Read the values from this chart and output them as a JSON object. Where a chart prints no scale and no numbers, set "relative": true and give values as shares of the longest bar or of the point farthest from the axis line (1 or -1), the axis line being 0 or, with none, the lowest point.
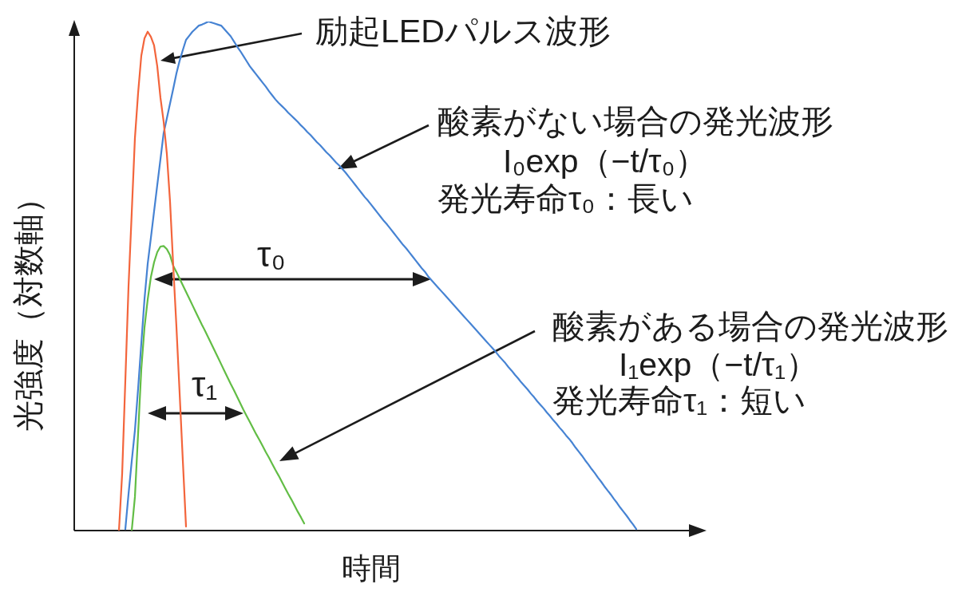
{
  "chart_data": {
    "type": "line",
    "relative": true,
    "tick_labels": false,
    "marker": "none",
    "xlabel": "時間",
    "ylabel": "光強度（対数軸）",
    "annotations": [
      "励起LEDパルス波形",
      "酸素がない場合の発光波形",
      "I₀exp（−t/τ₀）",
      "発光寿命τ₀：長い",
      "τ₀",
      "酸素がある場合の発光波形",
      "I₁exp（−t/τ₁）",
      "発光寿命τ₁：短い",
      "τ₁"
    ],
    "categories": [
      null,
      null,
      null,
      null,
      null,
      null,
      null,
      null,
      null,
      null,
      null,
      null,
      null,
      null,
      null,
      null,
      null,
      null,
      null,
      null,
      null,
      null,
      null,
      null,
      null,
      null,
      null,
      null,
      null,
      null,
      null,
      null,
      null,
      null,
      null,
      null,
      null,
      null,
      null,
      null,
      null,
      null,
      null,
      null,
      null,
      null,
      null,
      null,
      null,
      null,
      null,
      null,
      null,
      null,
      null,
      null,
      null,
      null,
      null,
      null,
      null,
      null,
      null,
      null,
      null,
      null,
      null,
      null,
      null,
      null,
      null,
      null,
      null,
      null,
      null,
      null,
      null,
      null,
      null,
      null,
      null,
      null,
      null,
      null,
      null,
      null,
      null,
      null,
      null,
      null,
      null,
      null,
      null,
      null,
      null,
      null,
      null,
      null,
      null,
      null,
      null,
      null,
      null,
      null,
      null,
      null,
      null,
      null,
      null,
      null,
      null,
      null,
      null,
      null,
      null,
      null,
      null,
      null,
      null,
      null,
      null,
      null,
      null,
      null,
      null,
      null,
      null,
      null,
      null,
      null,
      null,
      null,
      null,
      null,
      null,
      null,
      null,
      null,
      null,
      null,
      null,
      null,
      null,
      null,
      null,
      null,
      null,
      null,
      null,
      null,
      null,
      null,
      null,
      null,
      null,
      null,
      null,
      null,
      null,
      null,
      null,
      null,
      null,
      null,
      null,
      null,
      null,
      null,
      null,
      null,
      null,
      null,
      null,
      null,
      null,
      null,
      null,
      null,
      null,
      null,
      null,
      null,
      null,
      null,
      null,
      null,
      null,
      null,
      null,
      null,
      null,
      null,
      null,
      null
    ],
    "series": [
      {
        "color": "#f3653c",
        "values": [
          null,
          null,
          null,
          null,
          null,
          null,
          null,
          null,
          null,
          null,
          null,
          null,
          null,
          null,
          0.0,
          0.111,
          0.295,
          0.48,
          0.624,
          0.771,
          0.86,
          0.933,
          0.967,
          0.98,
          0.97,
          0.953,
          0.912,
          0.85,
          0.803,
          0.74,
          0.646,
          0.52,
          0.4,
          0.27,
          0.138,
          0.008,
          null,
          null,
          null,
          null,
          null,
          null,
          null,
          null,
          null,
          null,
          null,
          null,
          null,
          null,
          null,
          null,
          null,
          null,
          null,
          null,
          null,
          null,
          null,
          null,
          null,
          null,
          null,
          null,
          null,
          null,
          null,
          null,
          null,
          null,
          null,
          null,
          null,
          null,
          null,
          null,
          null,
          null,
          null,
          null,
          null,
          null,
          null,
          null,
          null,
          null,
          null,
          null,
          null,
          null,
          null,
          null,
          null,
          null,
          null,
          null,
          null,
          null,
          null,
          null,
          null,
          null,
          null,
          null,
          null,
          null,
          null,
          null,
          null,
          null,
          null,
          null,
          null,
          null,
          null,
          null,
          null,
          null,
          null,
          null,
          null,
          null,
          null,
          null,
          null,
          null,
          null,
          null,
          null,
          null,
          null,
          null,
          null,
          null,
          null,
          null,
          null,
          null,
          null,
          null,
          null,
          null,
          null,
          null,
          null,
          null,
          null,
          null,
          null,
          null,
          null,
          null,
          null,
          null,
          null,
          null,
          null,
          null,
          null,
          null,
          null,
          null,
          null,
          null,
          null,
          null,
          null,
          null,
          null,
          null,
          null,
          null,
          null,
          null,
          null,
          null,
          null,
          null,
          null,
          null,
          null,
          null,
          null,
          null,
          null,
          null,
          null,
          null,
          null,
          null,
          null,
          null,
          null,
          null
        ]
      },
      {
        "color": "#4683d3",
        "values": [
          null,
          null,
          null,
          null,
          null,
          null,
          null,
          null,
          null,
          null,
          null,
          null,
          null,
          null,
          null,
          null,
          0.003,
          0.072,
          0.136,
          0.197,
          0.279,
          0.368,
          0.455,
          0.524,
          0.575,
          0.627,
          0.679,
          0.73,
          0.781,
          0.81,
          0.839,
          0.868,
          0.898,
          0.923,
          0.944,
          0.964,
          0.972,
          0.98,
          0.986,
          0.992,
          0.994,
          0.997,
          1.0,
          0.998,
          0.996,
          0.994,
          0.992,
          0.985,
          0.978,
          0.971,
          0.961,
          0.951,
          0.942,
          0.932,
          0.922,
          0.912,
          0.904,
          0.896,
          0.888,
          0.88,
          0.872,
          0.863,
          0.855,
          0.847,
          0.84,
          0.834,
          0.828,
          0.821,
          0.815,
          0.809,
          0.803,
          0.796,
          0.79,
          0.783,
          0.777,
          0.77,
          0.763,
          0.757,
          0.75,
          0.743,
          0.737,
          0.73,
          0.723,
          0.717,
          0.71,
          0.703,
          0.695,
          0.687,
          0.679,
          0.671,
          0.663,
          0.655,
          0.648,
          0.64,
          0.632,
          0.624,
          0.616,
          0.608,
          0.601,
          0.593,
          0.585,
          0.577,
          0.569,
          0.561,
          0.554,
          0.546,
          0.538,
          0.53,
          0.522,
          0.514,
          0.507,
          0.498,
          0.491,
          0.484,
          0.477,
          0.47,
          0.463,
          0.456,
          0.449,
          0.442,
          0.435,
          0.428,
          0.421,
          0.414,
          0.407,
          0.4,
          0.393,
          0.386,
          0.379,
          0.372,
          0.365,
          0.358,
          0.351,
          0.343,
          0.336,
          0.329,
          0.321,
          0.314,
          0.306,
          0.299,
          0.291,
          0.284,
          0.277,
          0.269,
          0.262,
          0.254,
          0.247,
          0.24,
          0.232,
          0.225,
          0.217,
          0.21,
          0.202,
          0.195,
          0.187,
          0.18,
          0.172,
          0.163,
          0.155,
          0.147,
          0.138,
          0.13,
          0.121,
          0.113,
          0.104,
          0.096,
          0.087,
          0.079,
          0.071,
          0.062,
          0.054,
          0.045,
          0.037,
          0.029,
          0.02,
          0.012,
          0.003,
          null,
          null,
          null,
          null,
          null,
          null,
          null,
          null,
          null,
          null,
          null,
          null,
          null,
          null,
          null,
          null,
          null
        ]
      },
      {
        "color": "#62bd45",
        "values": [
          null,
          null,
          null,
          null,
          null,
          null,
          null,
          null,
          null,
          null,
          null,
          null,
          null,
          null,
          null,
          null,
          null,
          null,
          0.0,
          0.066,
          0.191,
          0.317,
          0.399,
          0.454,
          0.498,
          0.527,
          0.547,
          0.558,
          0.559,
          0.553,
          0.541,
          0.52,
          0.508,
          0.495,
          0.482,
          0.469,
          0.456,
          0.443,
          0.43,
          0.417,
          0.404,
          0.392,
          0.379,
          0.366,
          0.353,
          0.34,
          0.327,
          0.314,
          0.301,
          0.288,
          0.276,
          0.263,
          0.25,
          0.237,
          0.225,
          0.213,
          0.201,
          0.189,
          0.178,
          0.166,
          0.154,
          0.143,
          0.131,
          0.119,
          0.108,
          0.096,
          0.084,
          0.072,
          0.061,
          0.049,
          0.037,
          0.026,
          0.014,
          null,
          null,
          null,
          null,
          null,
          null,
          null,
          null,
          null,
          null,
          null,
          null,
          null,
          null,
          null,
          null,
          null,
          null,
          null,
          null,
          null,
          null,
          null,
          null,
          null,
          null,
          null,
          null,
          null,
          null,
          null,
          null,
          null,
          null,
          null,
          null,
          null,
          null,
          null,
          null,
          null,
          null,
          null,
          null,
          null,
          null,
          null,
          null,
          null,
          null,
          null,
          null,
          null,
          null,
          null,
          null,
          null,
          null,
          null,
          null,
          null,
          null,
          null,
          null,
          null,
          null,
          null,
          null,
          null,
          null,
          null,
          null,
          null,
          null,
          null,
          null,
          null,
          null,
          null,
          null,
          null,
          null,
          null,
          null,
          null,
          null,
          null,
          null,
          null,
          null,
          null,
          null,
          null,
          null,
          null,
          null,
          null,
          null,
          null,
          null,
          null,
          null,
          null,
          null,
          null,
          null,
          null,
          null,
          null,
          null,
          null,
          null,
          null,
          null,
          null,
          null,
          null,
          null,
          null,
          null,
          null
        ]
      }
    ]
  }
}
